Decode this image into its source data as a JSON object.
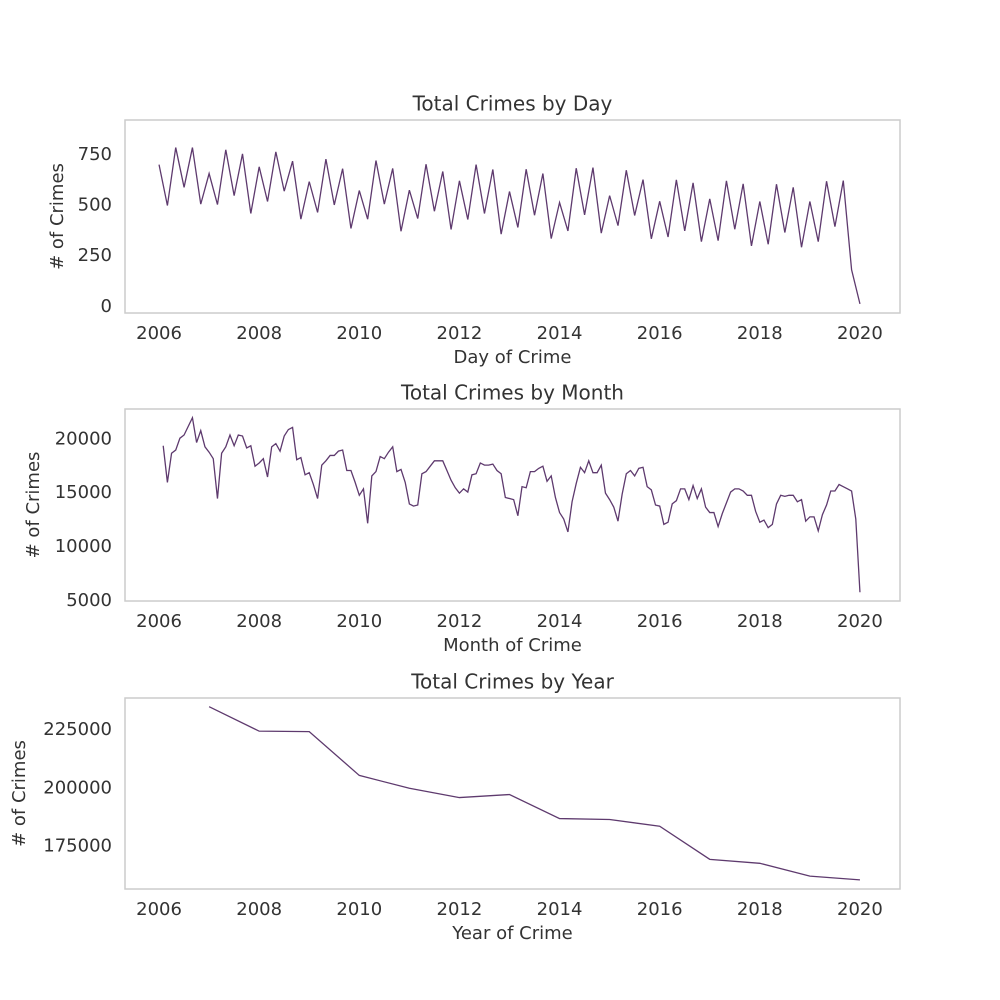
{
  "chart_data": [
    {
      "type": "line",
      "title": "Total Crimes by Day",
      "xlabel": "Day of Crime",
      "ylabel": "# of Crimes",
      "color": "#5e3a6e",
      "grid": false,
      "xlim": [
        2005.32,
        2020.8
      ],
      "xticks": [
        2006,
        2008,
        2010,
        2012,
        2014,
        2016,
        2018,
        2020
      ],
      "ylim": [
        -30,
        922
      ],
      "yticks": [
        0,
        250,
        500,
        750
      ],
      "x": [
        2006.0,
        2006.167,
        2006.333,
        2006.5,
        2006.667,
        2006.833,
        2007.0,
        2007.167,
        2007.333,
        2007.5,
        2007.667,
        2007.833,
        2008.0,
        2008.167,
        2008.333,
        2008.5,
        2008.667,
        2008.833,
        2009.0,
        2009.167,
        2009.333,
        2009.5,
        2009.667,
        2009.833,
        2010.0,
        2010.167,
        2010.333,
        2010.5,
        2010.667,
        2010.833,
        2011.0,
        2011.167,
        2011.333,
        2011.5,
        2011.667,
        2011.833,
        2012.0,
        2012.167,
        2012.333,
        2012.5,
        2012.667,
        2012.833,
        2013.0,
        2013.167,
        2013.333,
        2013.5,
        2013.667,
        2013.833,
        2014.0,
        2014.167,
        2014.333,
        2014.5,
        2014.667,
        2014.833,
        2015.0,
        2015.167,
        2015.333,
        2015.5,
        2015.667,
        2015.833,
        2016.0,
        2016.167,
        2016.333,
        2016.5,
        2016.667,
        2016.833,
        2017.0,
        2017.167,
        2017.333,
        2017.5,
        2017.667,
        2017.833,
        2018.0,
        2018.167,
        2018.333,
        2018.5,
        2018.667,
        2018.833,
        2019.0,
        2019.167,
        2019.333,
        2019.5,
        2019.667,
        2019.833,
        2020.0
      ],
      "values": [
        702,
        500,
        786,
        590,
        786,
        507,
        658,
        505,
        775,
        549,
        755,
        461,
        691,
        520,
        765,
        571,
        719,
        433,
        618,
        466,
        729,
        503,
        682,
        387,
        574,
        433,
        722,
        507,
        683,
        373,
        576,
        436,
        704,
        472,
        668,
        382,
        622,
        431,
        702,
        461,
        678,
        359,
        569,
        392,
        679,
        452,
        658,
        337,
        515,
        375,
        684,
        454,
        687,
        364,
        549,
        401,
        674,
        451,
        628,
        336,
        521,
        345,
        627,
        375,
        612,
        322,
        533,
        327,
        622,
        383,
        607,
        301,
        520,
        309,
        605,
        367,
        590,
        294,
        520,
        322,
        620,
        396,
        623,
        183,
        15
      ]
    },
    {
      "type": "line",
      "title": "Total Crimes by Month",
      "xlabel": "Month of Crime",
      "ylabel": "# of Crimes",
      "color": "#5e3a6e",
      "grid": false,
      "xlim": [
        2005.32,
        2020.8
      ],
      "xticks": [
        2006,
        2008,
        2010,
        2012,
        2014,
        2016,
        2018,
        2020
      ],
      "ylim": [
        4990,
        22810
      ],
      "yticks": [
        5000,
        10000,
        15000,
        20000
      ],
      "x": [
        2006.083,
        2006.167,
        2006.25,
        2006.333,
        2006.417,
        2006.5,
        2006.583,
        2006.667,
        2006.75,
        2006.833,
        2006.917,
        2007.0,
        2007.083,
        2007.167,
        2007.25,
        2007.333,
        2007.417,
        2007.5,
        2007.583,
        2007.667,
        2007.75,
        2007.833,
        2007.917,
        2008.0,
        2008.083,
        2008.167,
        2008.25,
        2008.333,
        2008.417,
        2008.5,
        2008.583,
        2008.667,
        2008.75,
        2008.833,
        2008.917,
        2009.0,
        2009.083,
        2009.167,
        2009.25,
        2009.333,
        2009.417,
        2009.5,
        2009.583,
        2009.667,
        2009.75,
        2009.833,
        2009.917,
        2010.0,
        2010.083,
        2010.167,
        2010.25,
        2010.333,
        2010.417,
        2010.5,
        2010.583,
        2010.667,
        2010.75,
        2010.833,
        2010.917,
        2011.0,
        2011.083,
        2011.167,
        2011.25,
        2011.333,
        2011.417,
        2011.5,
        2011.583,
        2011.667,
        2011.75,
        2011.833,
        2011.917,
        2012.0,
        2012.083,
        2012.167,
        2012.25,
        2012.333,
        2012.417,
        2012.5,
        2012.583,
        2012.667,
        2012.75,
        2012.833,
        2012.917,
        2013.0,
        2013.083,
        2013.167,
        2013.25,
        2013.333,
        2013.417,
        2013.5,
        2013.583,
        2013.667,
        2013.75,
        2013.833,
        2013.917,
        2014.0,
        2014.083,
        2014.167,
        2014.25,
        2014.333,
        2014.417,
        2014.5,
        2014.583,
        2014.667,
        2014.75,
        2014.833,
        2014.917,
        2015.0,
        2015.083,
        2015.167,
        2015.25,
        2015.333,
        2015.417,
        2015.5,
        2015.583,
        2015.667,
        2015.75,
        2015.833,
        2015.917,
        2016.0,
        2016.083,
        2016.167,
        2016.25,
        2016.333,
        2016.417,
        2016.5,
        2016.583,
        2016.667,
        2016.75,
        2016.833,
        2016.917,
        2017.0,
        2017.083,
        2017.167,
        2017.25,
        2017.333,
        2017.417,
        2017.5,
        2017.583,
        2017.667,
        2017.75,
        2017.833,
        2017.917,
        2018.0,
        2018.083,
        2018.167,
        2018.25,
        2018.333,
        2018.417,
        2018.5,
        2018.583,
        2018.667,
        2018.75,
        2018.833,
        2018.917,
        2019.0,
        2019.083,
        2019.167,
        2019.25,
        2019.333,
        2019.417,
        2019.5,
        2019.583,
        2019.667,
        2019.75,
        2019.833,
        2019.917,
        2020.0
      ],
      "values": [
        19400,
        16000,
        18700,
        19000,
        20100,
        20400,
        21200,
        22000,
        19700,
        20800,
        19300,
        18800,
        18200,
        14500,
        18700,
        19300,
        20400,
        19400,
        20400,
        20300,
        19200,
        19400,
        17500,
        17800,
        18200,
        16500,
        19300,
        19600,
        18900,
        20300,
        20900,
        21100,
        18100,
        18300,
        16700,
        16900,
        15800,
        14500,
        17600,
        18000,
        18500,
        18500,
        18900,
        19000,
        17100,
        17100,
        16000,
        14800,
        15400,
        12200,
        16600,
        17000,
        18400,
        18200,
        18800,
        19300,
        17000,
        17200,
        16000,
        14000,
        13800,
        13900,
        16800,
        17000,
        17500,
        18000,
        18000,
        18000,
        17100,
        16200,
        15500,
        15000,
        15400,
        15100,
        16700,
        16800,
        17800,
        17600,
        17600,
        17700,
        17100,
        16800,
        14600,
        14500,
        14400,
        12900,
        15600,
        15500,
        17000,
        17000,
        17300,
        17500,
        16100,
        16600,
        14600,
        13200,
        12600,
        11400,
        14200,
        15900,
        17400,
        16900,
        18000,
        16900,
        16900,
        17600,
        15000,
        14400,
        13700,
        12400,
        14900,
        16800,
        17100,
        16600,
        17300,
        17400,
        15600,
        15300,
        13900,
        13800,
        12100,
        12300,
        14000,
        14300,
        15400,
        15400,
        14400,
        15700,
        14500,
        15400,
        13700,
        13200,
        13200,
        11900,
        13100,
        14100,
        15100,
        15400,
        15400,
        15200,
        14800,
        14800,
        13300,
        12300,
        12500,
        11800,
        12100,
        14000,
        14800,
        14700,
        14800,
        14800,
        14200,
        14400,
        12400,
        12800,
        12800,
        11500,
        13000,
        13900,
        15200,
        15200,
        15800,
        15600,
        15400,
        15200,
        12600,
        5800
      ]
    },
    {
      "type": "line",
      "title": "Total Crimes by Year",
      "xlabel": "Year of Crime",
      "ylabel": "# of Crimes",
      "color": "#5e3a6e",
      "grid": false,
      "xlim": [
        2005.32,
        2020.8
      ],
      "xticks": [
        2006,
        2008,
        2010,
        2012,
        2014,
        2016,
        2018,
        2020
      ],
      "ylim": [
        156775,
        238725
      ],
      "yticks": [
        175000,
        200000,
        225000
      ],
      "x": [
        2007,
        2008,
        2009,
        2010,
        2011,
        2012,
        2013,
        2014,
        2015,
        2016,
        2017,
        2018,
        2019,
        2020
      ],
      "values": [
        235000,
        224500,
        224300,
        205500,
        200000,
        196000,
        197300,
        187000,
        186600,
        183700,
        169500,
        167800,
        162300,
        160700
      ]
    }
  ]
}
